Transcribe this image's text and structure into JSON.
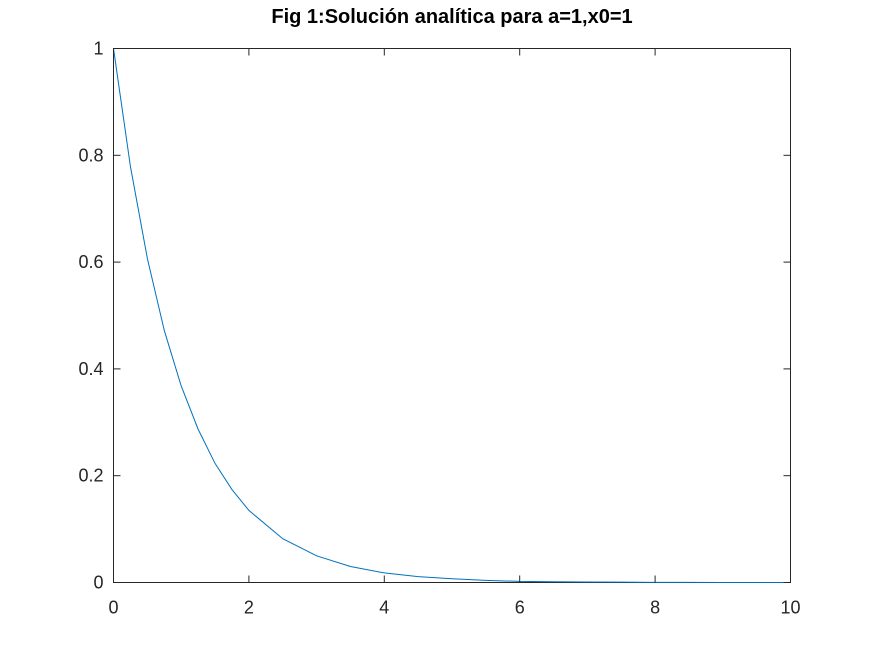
{
  "chart_data": {
    "type": "line",
    "title": "Fig 1:Solución analítica para a=1,x0=1",
    "xlabel": "",
    "ylabel": "",
    "xlim": [
      0,
      10
    ],
    "ylim": [
      0,
      1
    ],
    "x_ticks": [
      {
        "value": 0,
        "label": "0"
      },
      {
        "value": 2,
        "label": "2"
      },
      {
        "value": 4,
        "label": "4"
      },
      {
        "value": 6,
        "label": "6"
      },
      {
        "value": 8,
        "label": "8"
      },
      {
        "value": 10,
        "label": "10"
      }
    ],
    "y_ticks": [
      {
        "value": 0,
        "label": "0"
      },
      {
        "value": 0.2,
        "label": "0.2"
      },
      {
        "value": 0.4,
        "label": "0.4"
      },
      {
        "value": 0.6,
        "label": "0.6"
      },
      {
        "value": 0.8,
        "label": "0.8"
      },
      {
        "value": 1,
        "label": "1"
      }
    ],
    "grid": false,
    "series": [
      {
        "color": "#0072bd",
        "x": [
          0,
          0.25,
          0.5,
          0.75,
          1,
          1.25,
          1.5,
          1.75,
          2,
          2.5,
          3,
          3.5,
          4,
          4.5,
          5,
          5.5,
          6,
          6.5,
          7,
          7.5,
          8,
          8.5,
          9,
          9.5,
          10
        ],
        "y": [
          1,
          0.779,
          0.607,
          0.472,
          0.368,
          0.287,
          0.223,
          0.174,
          0.135,
          0.082,
          0.05,
          0.03,
          0.018,
          0.011,
          0.007,
          0.004,
          0.002,
          0.0015,
          0.0009,
          0.0006,
          0.0003,
          0.0002,
          0.0001,
          0.0001,
          0.0
        ]
      }
    ]
  }
}
